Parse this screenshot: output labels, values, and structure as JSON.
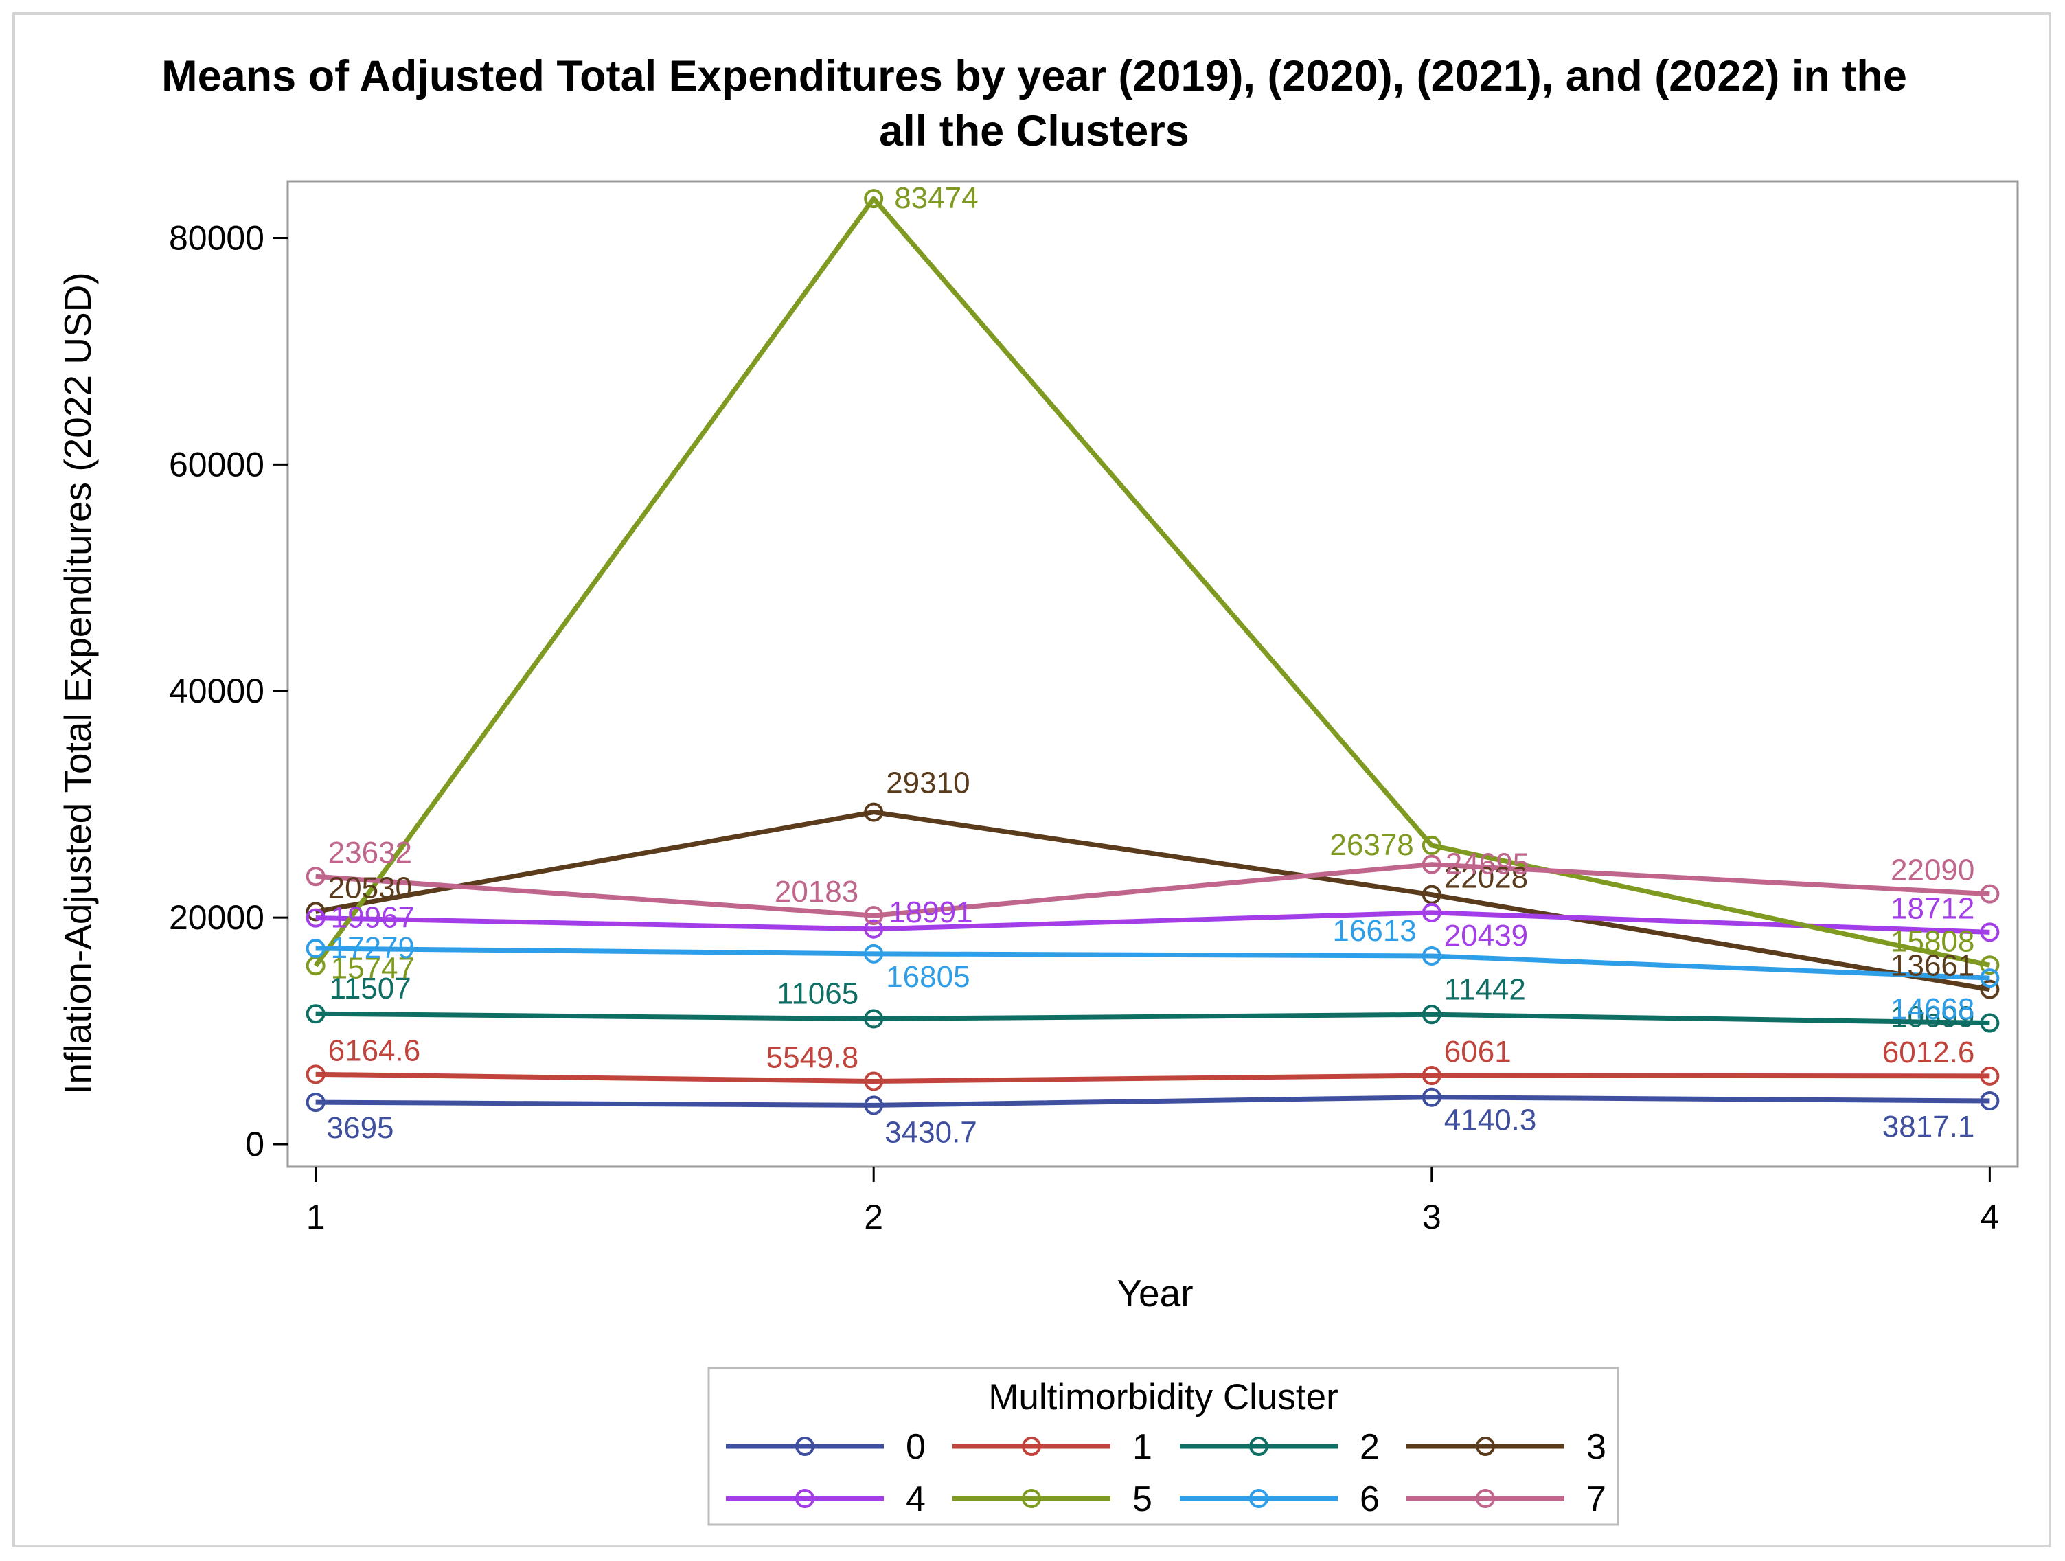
{
  "chart_data": {
    "type": "line",
    "title": [
      "Means of Adjusted Total Expenditures by year  (2019), (2020), (2021), and (2022) in the",
      "all the Clusters"
    ],
    "xlabel": "Year",
    "ylabel": "Inflation-Adjusted Total Expenditures (2022 USD)",
    "x": [
      1,
      2,
      3,
      4
    ],
    "x_tick_labels": [
      "1",
      "2",
      "3",
      "4"
    ],
    "y_ticks": [
      0,
      20000,
      40000,
      60000,
      80000
    ],
    "y_tick_labels": [
      "0",
      "20000",
      "40000",
      "60000",
      "80000"
    ],
    "ylim": [
      -2000,
      85000
    ],
    "xlim": [
      0.95,
      4.05
    ],
    "grid": false,
    "marker": "circle",
    "legend": {
      "title": "Multimorbidity Cluster",
      "placement": "bottom"
    },
    "series": [
      {
        "name": "0",
        "color": "#3f4fa0",
        "values": [
          3695,
          3430.7,
          4140.3,
          3817.1
        ],
        "labels": [
          "3695",
          "3430.7",
          "4140.3",
          "3817.1"
        ]
      },
      {
        "name": "1",
        "color": "#c0443c",
        "values": [
          6164.6,
          5549.8,
          6061,
          6012.6
        ],
        "labels": [
          "6164.6",
          "5549.8",
          "6061",
          "6012.6"
        ]
      },
      {
        "name": "2",
        "color": "#0f6e63",
        "values": [
          11507,
          11065,
          11442,
          10699
        ],
        "labels": [
          "11507",
          "11065",
          "11442",
          "10699"
        ]
      },
      {
        "name": "3",
        "color": "#5a3b1c",
        "values": [
          20530,
          29310,
          22028,
          13661
        ],
        "labels": [
          "20530",
          "29310",
          "22028",
          "13661"
        ]
      },
      {
        "name": "4",
        "color": "#a23de8",
        "values": [
          19967,
          18991,
          20439,
          18712
        ],
        "labels": [
          "19967",
          "18991",
          "20439",
          "18712"
        ]
      },
      {
        "name": "5",
        "color": "#7f9a20",
        "values": [
          15747,
          83474,
          26378,
          15808
        ],
        "labels": [
          "15747",
          "83474",
          "26378",
          "15808"
        ]
      },
      {
        "name": "6",
        "color": "#2e9ee8",
        "values": [
          17279,
          16805,
          16613,
          14668
        ],
        "labels": [
          "17279",
          "16805",
          "16613",
          "14668"
        ]
      },
      {
        "name": "7",
        "color": "#c0668c",
        "values": [
          23632,
          20183,
          24695,
          22090
        ],
        "labels": [
          "23632",
          "20183",
          "24695",
          "22090"
        ]
      }
    ]
  }
}
